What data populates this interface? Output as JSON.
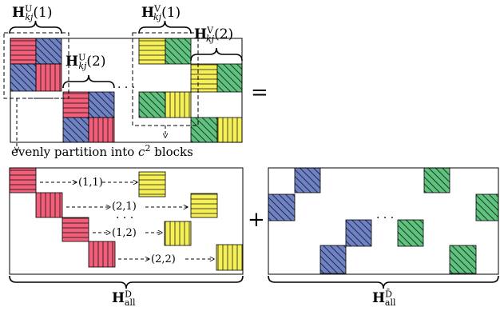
{
  "labels": {
    "hu1": {
      "main": "H",
      "sup": "U",
      "sub": "kj",
      "arg": "(1)"
    },
    "hu2": {
      "main": "H",
      "sup": "U",
      "sub": "kj",
      "arg": "(2)"
    },
    "hv1": {
      "main": "H",
      "sup": "V",
      "sub": "kj",
      "arg": "(1)"
    },
    "hv2": {
      "main": "H",
      "sup": "V",
      "sub": "kj",
      "arg": "(2)"
    },
    "hd": {
      "main": "H",
      "sup": "D",
      "sub": "all"
    },
    "hdbar": {
      "main": "H",
      "sup": "D̄",
      "sub": "all"
    }
  },
  "partition_text": "evenly partition into ",
  "partition_math": "c",
  "partition_exp": "2",
  "partition_tail": " blocks",
  "equals": "=",
  "plus": "+",
  "dots": "· · ·",
  "pairs": [
    "(1,1)",
    "(2,1)",
    "(1,2)",
    "(2,2)"
  ],
  "colors": {
    "red": "#f0607a",
    "blue": "#6f82c6",
    "yellow": "#f5f05a",
    "green": "#5fc27e",
    "line": "#000000"
  }
}
